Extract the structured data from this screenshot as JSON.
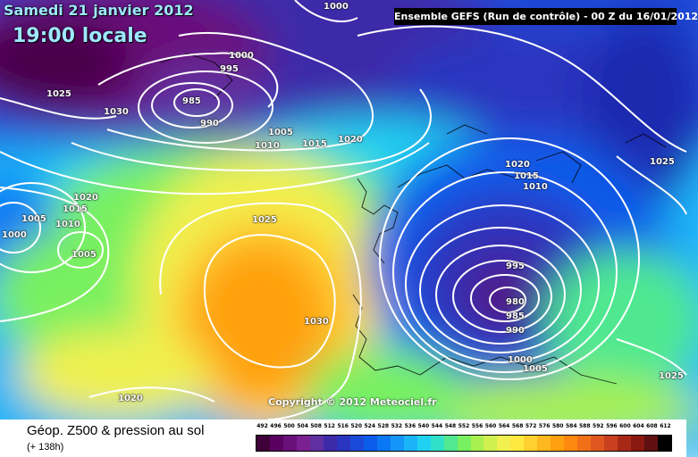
{
  "header": {
    "date": "Samedi 21 janvier 2012",
    "time": "19:00 locale",
    "run_info": "Ensemble GEFS (Run de contrôle)  -  00 Z du 16/01/2012"
  },
  "copyright": "Copyright © 2012 Meteociel.fr",
  "footer": {
    "title": "Géop. Z500 & pression au sol",
    "subtitle": "(+ 138h)"
  },
  "isobar_labels": [
    "1000",
    "1000",
    "995",
    "1025",
    "1030",
    "985",
    "990",
    "1005",
    "1010",
    "1015",
    "1020",
    "1020",
    "1015",
    "1010",
    "1005",
    "1000",
    "1005",
    "1025",
    "1030",
    "1020",
    "1025",
    "1020",
    "1015",
    "1010",
    "995",
    "980",
    "985",
    "990",
    "1000",
    "1005",
    "1025"
  ],
  "scale": {
    "labels": [
      "492",
      "496",
      "500",
      "504",
      "508",
      "512",
      "516",
      "520",
      "524",
      "528",
      "532",
      "536",
      "540",
      "544",
      "548",
      "552",
      "556",
      "560",
      "564",
      "568",
      "572",
      "576",
      "580",
      "584",
      "588",
      "592",
      "596",
      "600",
      "604",
      "608",
      "612"
    ],
    "colors": [
      "#3d0038",
      "#5a0060",
      "#6a107a",
      "#7a2090",
      "#6030a0",
      "#3d2aa8",
      "#2a36c0",
      "#1c4ad8",
      "#0c5cea",
      "#0a78f4",
      "#1496f8",
      "#1cb4f8",
      "#20d0f0",
      "#30e0c8",
      "#50e890",
      "#78f060",
      "#a8f050",
      "#d0f050",
      "#f0f050",
      "#ffe840",
      "#ffd030",
      "#ffb820",
      "#ffa010",
      "#ff8810",
      "#f07018",
      "#e05820",
      "#c84020",
      "#a82818",
      "#881810",
      "#601010",
      "#000000"
    ]
  }
}
